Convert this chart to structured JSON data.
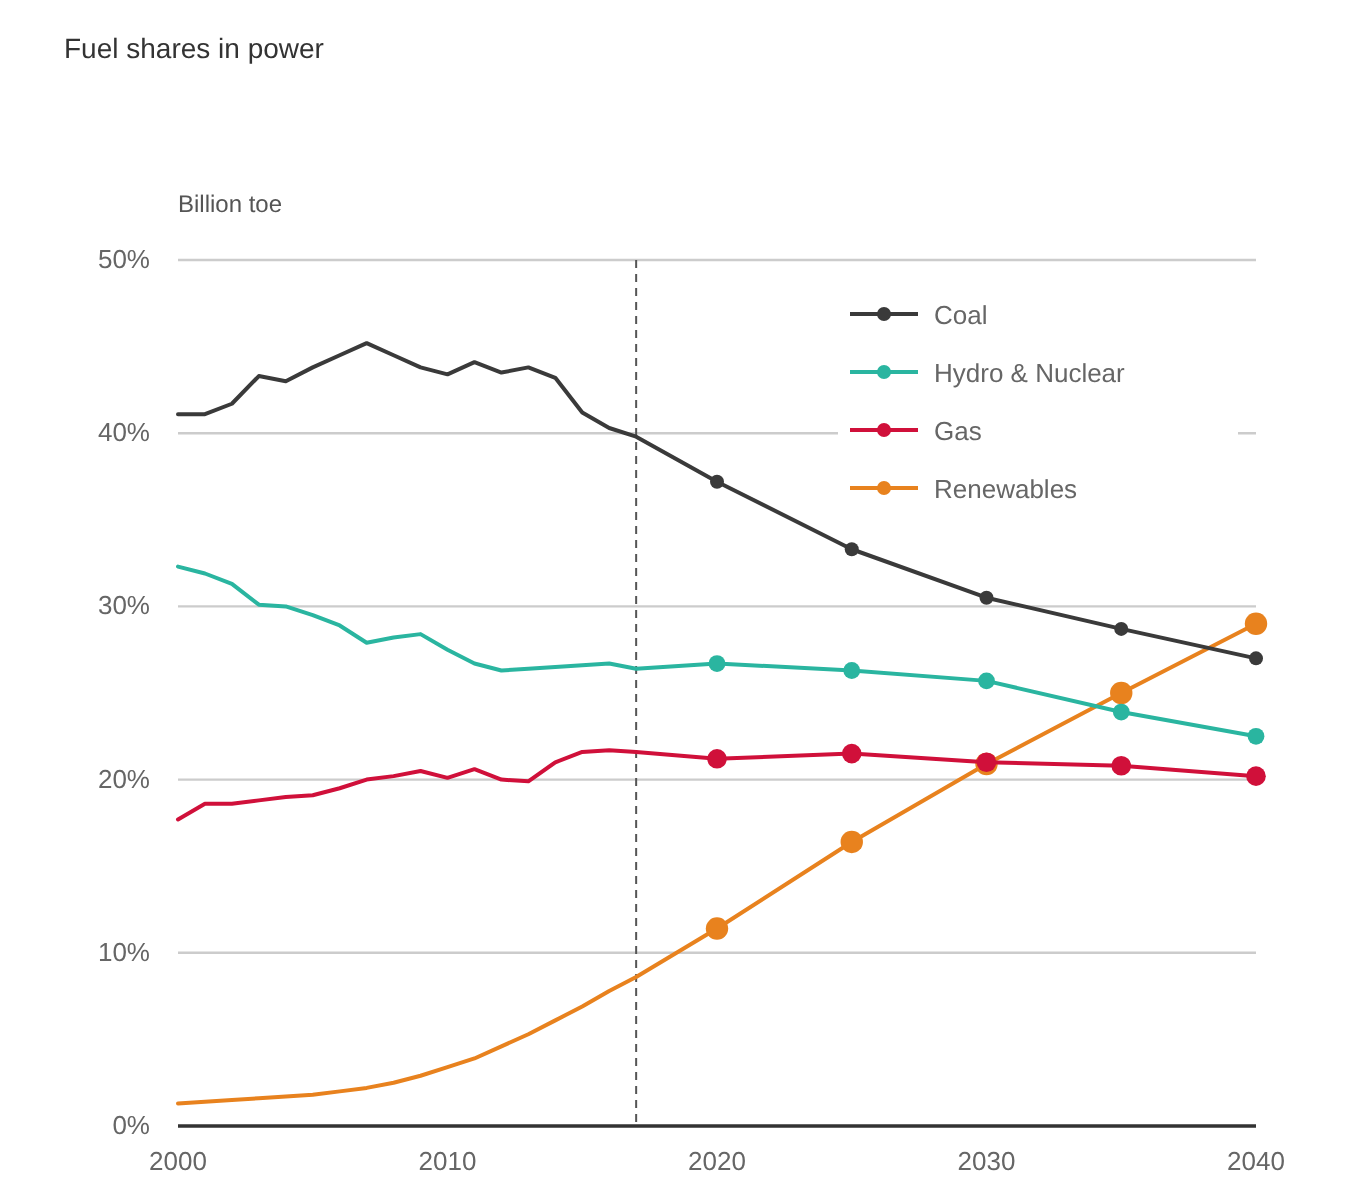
{
  "chart_data": {
    "type": "line",
    "title": "Fuel shares in power",
    "ylabel": "Billion toe",
    "series": [
      {
        "name": "Coal",
        "color": "#3a3a3a",
        "x": [
          2020,
          2025,
          2030,
          2035,
          2040
        ],
        "values": [
          37.2,
          33.3,
          30.5,
          28.7,
          27.0
        ]
      },
      {
        "name": "Hydro & Nuclear",
        "color": "#2ab5a0",
        "x": [
          2020,
          2025,
          2030,
          2035,
          2040
        ],
        "values": [
          26.7,
          26.3,
          25.7,
          23.9,
          22.5
        ]
      },
      {
        "name": "Gas",
        "color": "#d0103a",
        "x": [
          2020,
          2025,
          2030,
          2035,
          2040
        ],
        "values": [
          21.2,
          21.5,
          21.0,
          20.8,
          20.2
        ]
      },
      {
        "name": "Renewables",
        "color": "#e8821e",
        "x": [
          2020,
          2025,
          2030,
          2035,
          2040
        ],
        "values": [
          11.4,
          16.4,
          20.9,
          25.0,
          29.0
        ]
      },
      {
        "color": "#3a3a3a",
        "marker": "none",
        "x": [
          2000,
          2001,
          2002,
          2003,
          2004,
          2005,
          2006,
          2007,
          2008,
          2009,
          2010,
          2011,
          2012,
          2013,
          2014,
          2015,
          2016,
          2017,
          2020
        ],
        "values": [
          41.1,
          41.1,
          41.7,
          43.3,
          43.0,
          43.8,
          44.5,
          45.2,
          44.5,
          43.8,
          43.4,
          44.1,
          43.5,
          43.8,
          43.2,
          41.2,
          40.3,
          39.8,
          37.2
        ]
      },
      {
        "color": "#2ab5a0",
        "marker": "none",
        "x": [
          2000,
          2001,
          2002,
          2003,
          2004,
          2005,
          2006,
          2007,
          2008,
          2009,
          2010,
          2011,
          2012,
          2013,
          2014,
          2015,
          2016,
          2017,
          2020
        ],
        "values": [
          32.3,
          31.9,
          31.3,
          30.1,
          30.0,
          29.5,
          28.9,
          27.9,
          28.2,
          28.4,
          27.5,
          26.7,
          26.3,
          26.4,
          26.5,
          26.6,
          26.7,
          26.4,
          26.7
        ]
      },
      {
        "color": "#d0103a",
        "marker": "none",
        "x": [
          2000,
          2001,
          2002,
          2003,
          2004,
          2005,
          2006,
          2007,
          2008,
          2009,
          2010,
          2011,
          2012,
          2013,
          2014,
          2015,
          2016,
          2017,
          2020
        ],
        "values": [
          17.7,
          18.6,
          18.6,
          18.8,
          19.0,
          19.1,
          19.5,
          20.0,
          20.2,
          20.5,
          20.1,
          20.6,
          20.0,
          19.9,
          21.0,
          21.6,
          21.7,
          21.6,
          21.2
        ]
      },
      {
        "color": "#e8821e",
        "marker": "none",
        "x": [
          2000,
          2001,
          2002,
          2003,
          2004,
          2005,
          2006,
          2007,
          2008,
          2009,
          2010,
          2011,
          2012,
          2013,
          2014,
          2015,
          2016,
          2017,
          2020
        ],
        "values": [
          1.3,
          1.4,
          1.5,
          1.6,
          1.7,
          1.8,
          2.0,
          2.2,
          2.5,
          2.9,
          3.4,
          3.9,
          4.6,
          5.3,
          6.1,
          6.9,
          7.8,
          8.6,
          11.4
        ]
      }
    ],
    "xlim": [
      2000,
      2040
    ],
    "xticks": [
      2000,
      2010,
      2020,
      2030,
      2040
    ],
    "ylim": [
      0,
      50
    ],
    "yticks": [
      {
        "value": 0,
        "label": "0%"
      },
      {
        "value": 10,
        "label": "10%"
      },
      {
        "value": 20,
        "label": "20%"
      },
      {
        "value": 30,
        "label": "30%"
      },
      {
        "value": 40,
        "label": "40%"
      },
      {
        "value": 50,
        "label": "50%"
      }
    ],
    "ref_lines": [
      {
        "axis": "x",
        "value": 2017,
        "color": "#555555",
        "line_style": "dashed"
      }
    ],
    "grid": "y",
    "legend": "top right",
    "marker": "circle"
  }
}
